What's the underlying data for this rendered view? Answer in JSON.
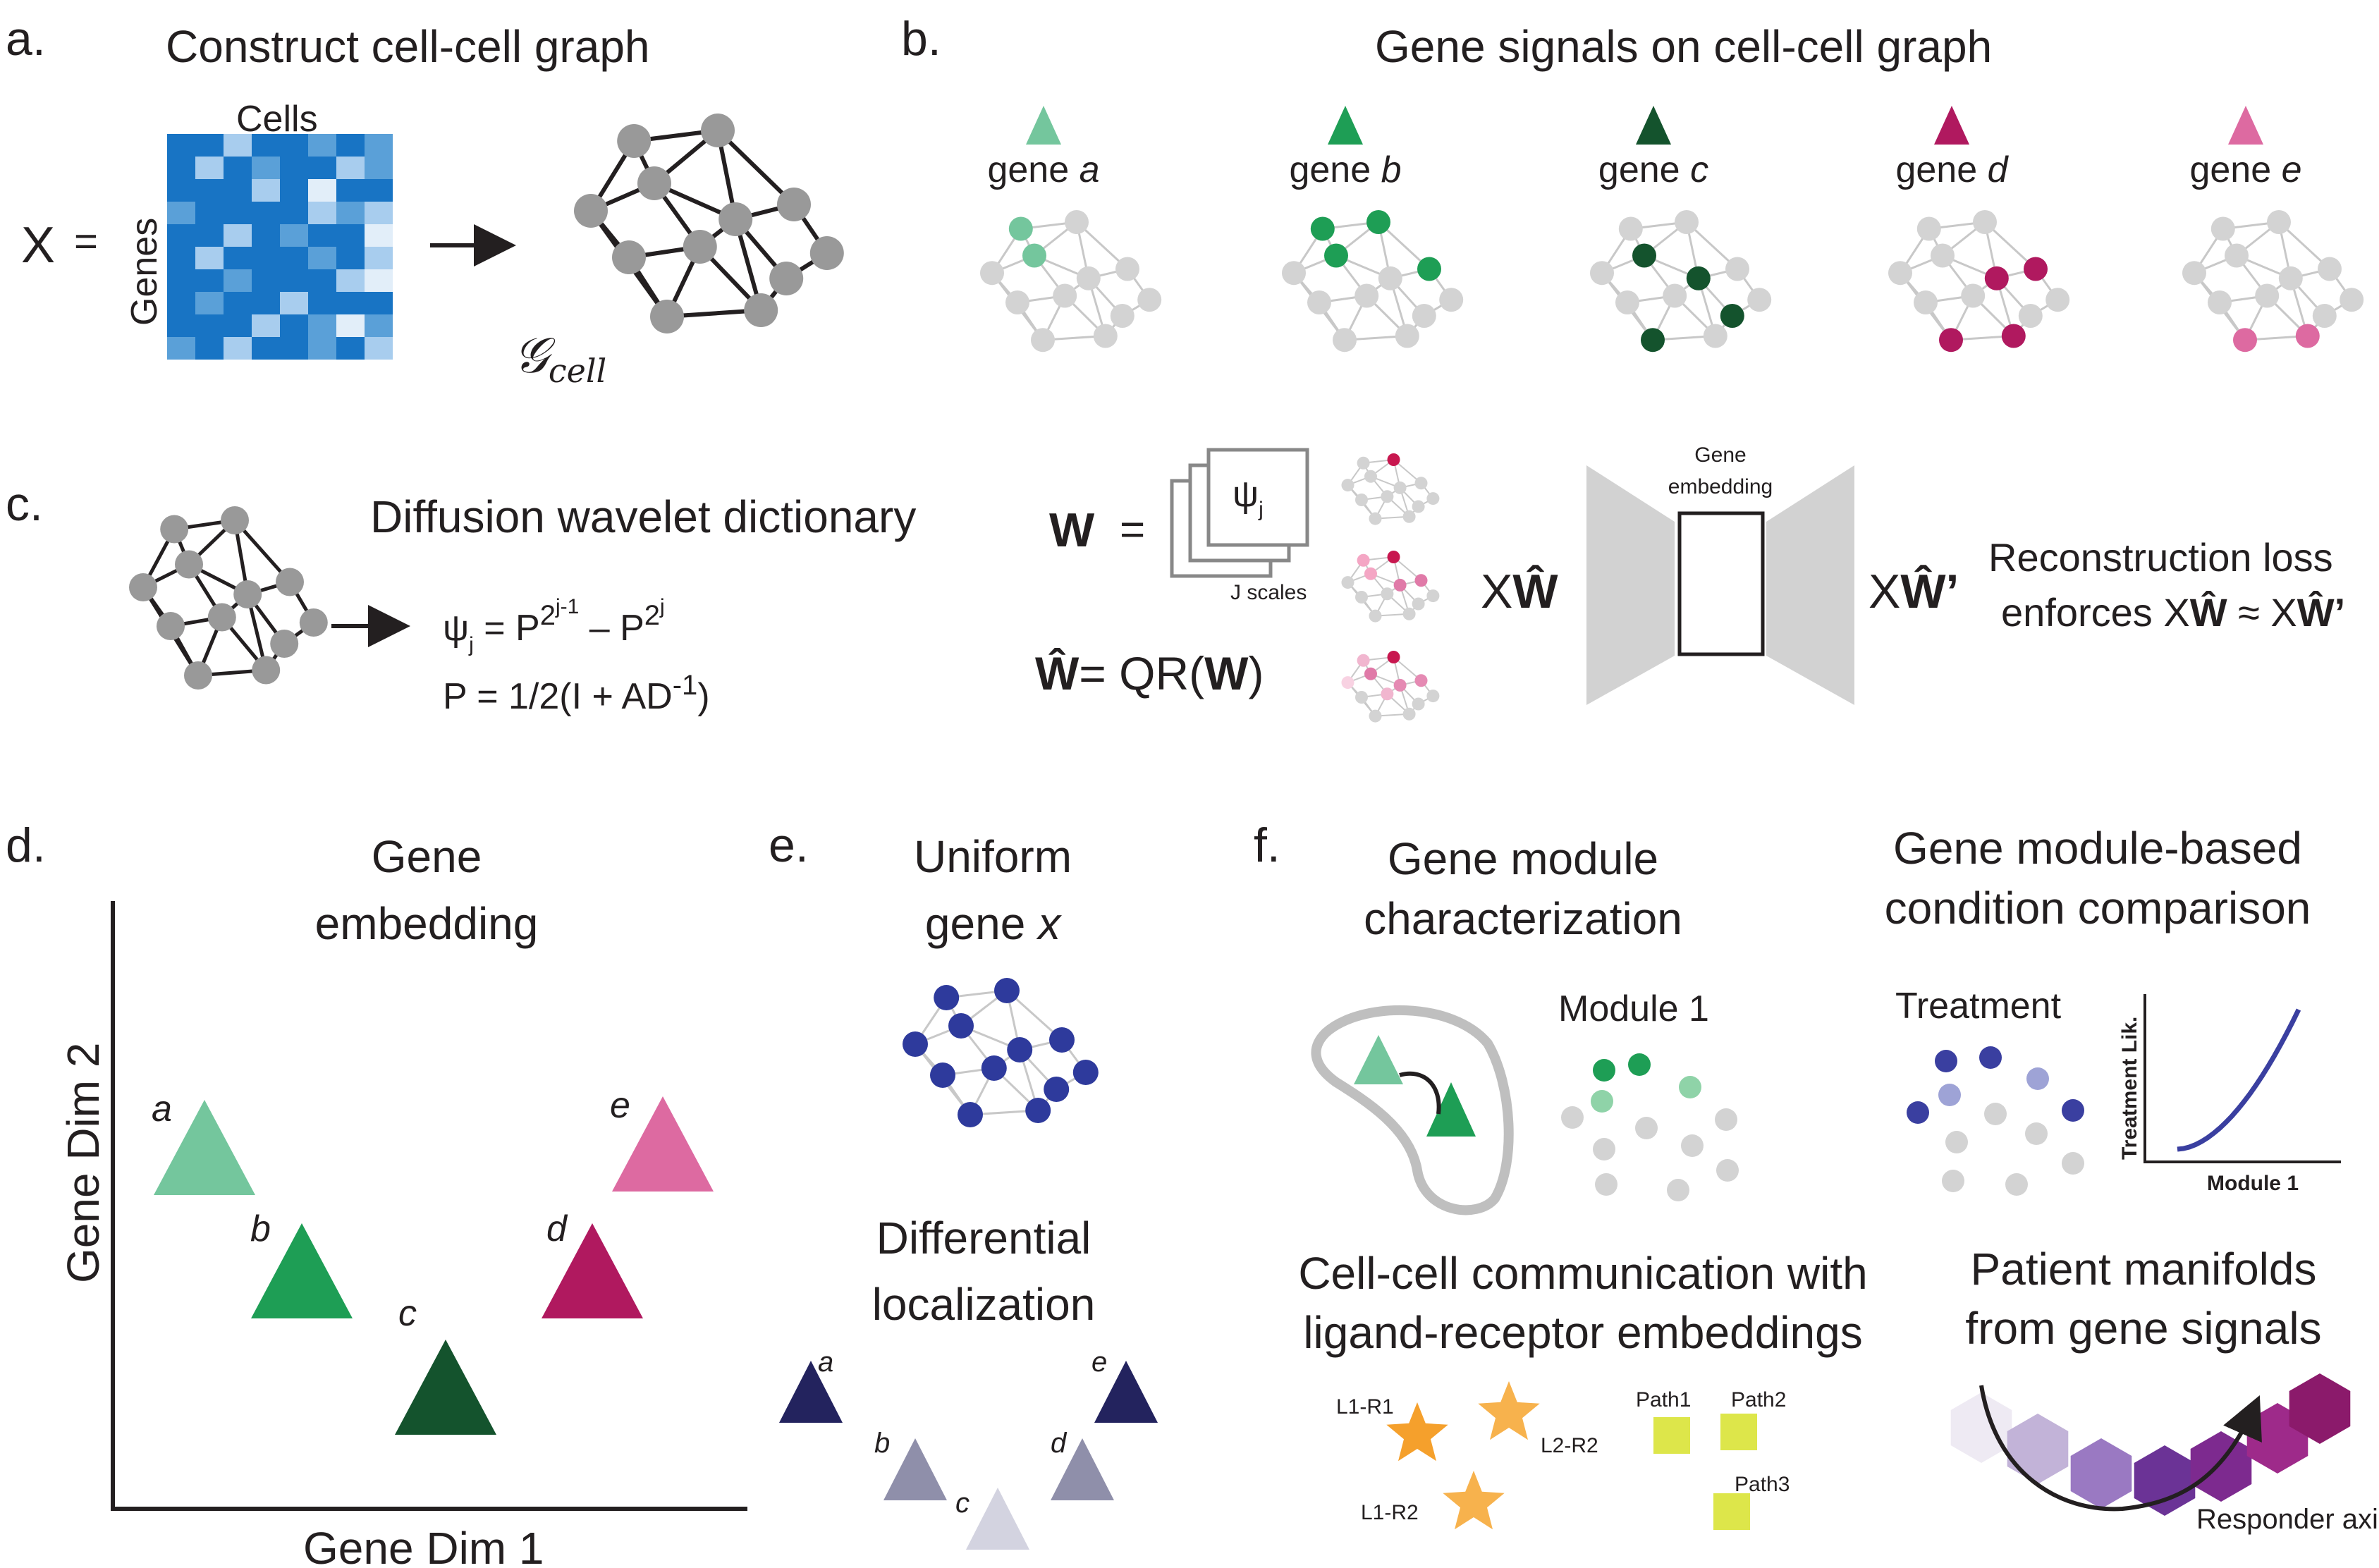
{
  "panels": {
    "a": {
      "letter": "a.",
      "title": "Construct cell-cell graph",
      "x_label": "X",
      "equals": "=",
      "cells_label": "Cells",
      "genes_label": "Genes",
      "graph_label_main": "𝒢",
      "graph_label_sub": "cell"
    },
    "b": {
      "letter": "b.",
      "title": "Gene signals on cell-cell graph",
      "genes": [
        {
          "prefix": "gene",
          "name": "a",
          "color": "#74c69d"
        },
        {
          "prefix": "gene",
          "name": "b",
          "color": "#1e9e55"
        },
        {
          "prefix": "gene",
          "name": "c",
          "color": "#14532d"
        },
        {
          "prefix": "gene",
          "name": "d",
          "color": "#b0195f"
        },
        {
          "prefix": "gene",
          "name": "e",
          "color": "#dd6aa1"
        }
      ]
    },
    "c": {
      "letter": "c.",
      "title": "Diffusion wavelet dictionary",
      "psi_eq": {
        "lhs": "ψ",
        "lhs_sub": "j",
        "eq": " = P",
        "exp1": "2",
        "exp1_sup": "j-1",
        "minus": " – P",
        "exp2": "2",
        "exp2_sup": "j"
      },
      "p_eq": {
        "text": "P = 1/2(I + AD",
        "sup": "-1",
        "close": ")"
      },
      "w_eq": {
        "w": "W",
        "eq": "="
      },
      "psi_card": {
        "lhs": "ψ",
        "sub": "j"
      },
      "j_scales": "J scales",
      "what_eq": {
        "w": "Ŵ",
        "eq": "= QR(",
        "w2": "W",
        "close": ")"
      },
      "xw_left": {
        "x": "X",
        "w": "Ŵ"
      },
      "embedding_label": [
        "Gene",
        "embedding"
      ],
      "xw_right": {
        "x": "X",
        "w": "Ŵ’"
      },
      "loss_line1": "Reconstruction loss",
      "loss_line2": {
        "pre": "enforces X",
        "w": "Ŵ",
        "mid": " ≈ X",
        "w2": "Ŵ’"
      }
    },
    "d": {
      "letter": "d.",
      "title": [
        "Gene",
        "embedding"
      ],
      "ylabel": "Gene Dim 2",
      "xlabel": "Gene Dim 1",
      "points": [
        {
          "name": "a",
          "color": "#74c69d"
        },
        {
          "name": "b",
          "color": "#1e9e55"
        },
        {
          "name": "c",
          "color": "#14532d"
        },
        {
          "name": "d",
          "color": "#b0195f"
        },
        {
          "name": "e",
          "color": "#dd6aa1"
        }
      ]
    },
    "e": {
      "letter": "e.",
      "title1": [
        "Uniform",
        "gene "
      ],
      "title1_var": "x",
      "title2": [
        "Differential",
        "localization"
      ],
      "labels": [
        "a",
        "b",
        "c",
        "d",
        "e"
      ],
      "node_color": "#2e3a9c"
    },
    "f": {
      "letter": "f.",
      "title_module": [
        "Gene module",
        "characterization"
      ],
      "module_label": "Module 1",
      "title_condition": [
        "Gene module-based",
        "condition comparison"
      ],
      "treatment_label": "Treatment",
      "mini_chart": {
        "ylabel": "Treatment Lik.",
        "xlabel": "Module 1"
      },
      "title_ccc": [
        "Cell-cell communication with",
        "ligand-receptor embeddings"
      ],
      "lr_labels": [
        "L1-R1",
        "L2-R2",
        "L1-R2"
      ],
      "path_labels": [
        "Path1",
        "Path2",
        "Path3"
      ],
      "title_patient": [
        "Patient manifolds",
        "from gene signals"
      ],
      "responder_label": "Responder axis"
    }
  },
  "colors": {
    "matrix_dark": "#1874c4",
    "matrix_mid": "#5aa0d8",
    "matrix_light": "#a8cdee",
    "matrix_pale": "#e2eef9",
    "node_gray": "#999999",
    "node_light": "#d3d3d3",
    "edge_light": "#c8c8c8",
    "star_orange": "#f7a738",
    "path_yellow": "#dde64a",
    "purple_dark": "#8b1a6b",
    "navy": "#252566"
  }
}
